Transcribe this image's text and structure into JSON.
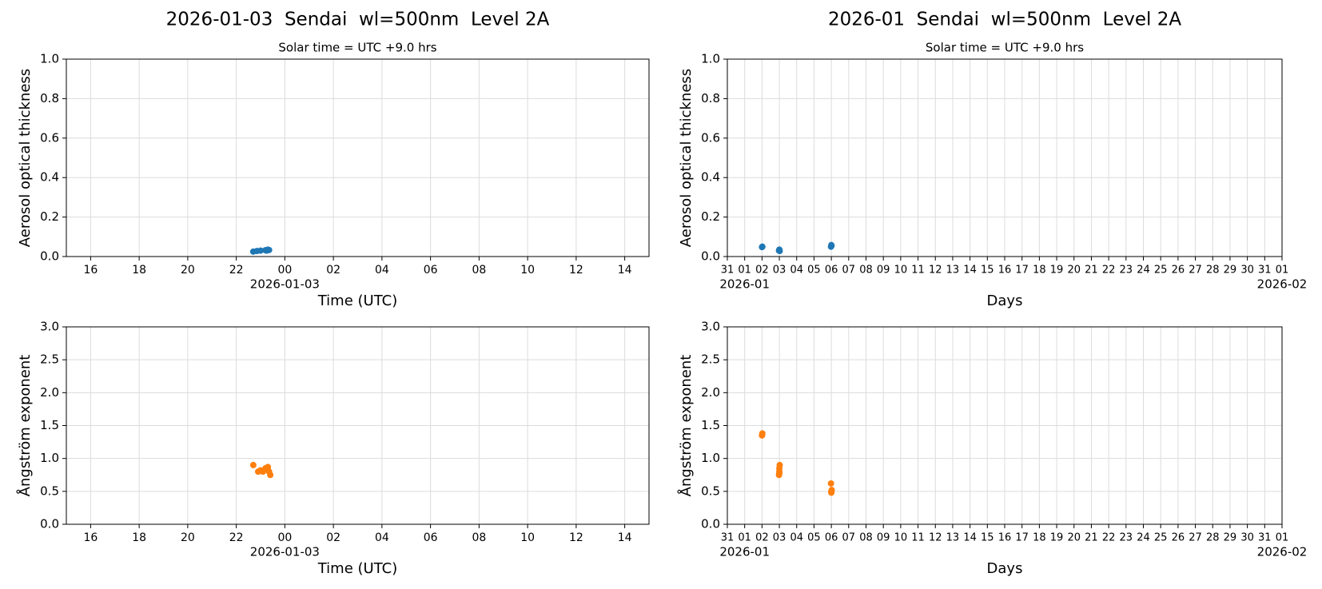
{
  "chart_data": [
    {
      "type": "scatter",
      "title": "2026-01-03  Sendai  wl=500nm  Level 2A",
      "subtitle": "Solar time = UTC +9.0 hrs",
      "x_label": "Time (UTC)",
      "y_label": "Aerosol optical thickness",
      "color": "#1f77b4",
      "grid": true,
      "x": [
        22.7,
        22.85,
        23.0,
        23.2,
        23.3,
        23.25,
        23.35
      ],
      "values": [
        0.025,
        0.028,
        0.03,
        0.032,
        0.035,
        0.03,
        0.033
      ],
      "xlim": [
        15,
        39
      ],
      "ylim": [
        0,
        1
      ],
      "xticks": [
        {
          "value": 16,
          "label": "16"
        },
        {
          "value": 18,
          "label": "18"
        },
        {
          "value": 20,
          "label": "20"
        },
        {
          "value": 22,
          "label": "22"
        },
        {
          "value": 24,
          "label": "00"
        },
        {
          "value": 26,
          "label": "02"
        },
        {
          "value": 28,
          "label": "04"
        },
        {
          "value": 30,
          "label": "06"
        },
        {
          "value": 32,
          "label": "08"
        },
        {
          "value": 34,
          "label": "10"
        },
        {
          "value": 36,
          "label": "12"
        },
        {
          "value": 38,
          "label": "14"
        }
      ],
      "xtick_sublabels": [
        {
          "value": 24,
          "label": "2026-01-03"
        }
      ],
      "yticks": [
        {
          "value": 0,
          "label": "0.0"
        },
        0.2,
        0.4,
        0.6,
        0.8,
        {
          "value": 1,
          "label": "1.0"
        }
      ]
    },
    {
      "type": "scatter",
      "title": "2026-01  Sendai  wl=500nm  Level 2A",
      "subtitle": "Solar time = UTC +9.0 hrs",
      "x_label": "Days",
      "y_label": "Aerosol optical thickness",
      "color": "#1f77b4",
      "grid": true,
      "x": [
        2.0,
        2.02,
        2.98,
        3.0,
        3.02,
        5.98,
        6.0,
        6.01
      ],
      "values": [
        0.048,
        0.05,
        0.03,
        0.035,
        0.028,
        0.05,
        0.058,
        0.055
      ],
      "xlim": [
        0,
        32
      ],
      "ylim": [
        0,
        1
      ],
      "xticks": [
        {
          "value": 0,
          "label": "31"
        },
        {
          "value": 1,
          "label": "01"
        },
        {
          "value": 2,
          "label": "02"
        },
        {
          "value": 3,
          "label": "03"
        },
        {
          "value": 4,
          "label": "04"
        },
        {
          "value": 5,
          "label": "05"
        },
        {
          "value": 6,
          "label": "06"
        },
        {
          "value": 7,
          "label": "07"
        },
        {
          "value": 8,
          "label": "08"
        },
        {
          "value": 9,
          "label": "09"
        },
        10,
        11,
        12,
        13,
        14,
        15,
        16,
        17,
        18,
        19,
        20,
        21,
        22,
        23,
        24,
        25,
        26,
        27,
        28,
        29,
        30,
        31,
        {
          "value": 32,
          "label": "01"
        }
      ],
      "xtick_sublabels": [
        {
          "value": 1,
          "label": "2026-01"
        },
        {
          "value": 32,
          "label": "2026-02"
        }
      ],
      "yticks": [
        {
          "value": 0,
          "label": "0.0"
        },
        0.2,
        0.4,
        0.6,
        0.8,
        {
          "value": 1,
          "label": "1.0"
        }
      ]
    },
    {
      "type": "scatter",
      "x_label": "Time (UTC)",
      "y_label": "Ångström exponent",
      "color": "#ff7f0e",
      "grid": true,
      "x": [
        22.7,
        22.9,
        23.0,
        23.1,
        23.2,
        23.3,
        23.35,
        23.4,
        23.3
      ],
      "values": [
        0.9,
        0.8,
        0.82,
        0.8,
        0.85,
        0.87,
        0.8,
        0.75,
        0.83
      ],
      "xlim": [
        15,
        39
      ],
      "ylim": [
        0,
        3
      ],
      "xticks": [
        {
          "value": 16,
          "label": "16"
        },
        {
          "value": 18,
          "label": "18"
        },
        {
          "value": 20,
          "label": "20"
        },
        {
          "value": 22,
          "label": "22"
        },
        {
          "value": 24,
          "label": "00"
        },
        {
          "value": 26,
          "label": "02"
        },
        {
          "value": 28,
          "label": "04"
        },
        {
          "value": 30,
          "label": "06"
        },
        {
          "value": 32,
          "label": "08"
        },
        {
          "value": 34,
          "label": "10"
        },
        {
          "value": 36,
          "label": "12"
        },
        {
          "value": 38,
          "label": "14"
        }
      ],
      "xtick_sublabels": [
        {
          "value": 24,
          "label": "2026-01-03"
        }
      ],
      "yticks": [
        {
          "value": 0,
          "label": "0.0"
        },
        0.5,
        {
          "value": 1,
          "label": "1.0"
        },
        1.5,
        {
          "value": 2,
          "label": "2.0"
        },
        2.5,
        {
          "value": 3,
          "label": "3.0"
        }
      ]
    },
    {
      "type": "scatter",
      "x_label": "Days",
      "y_label": "Ångström exponent",
      "color": "#ff7f0e",
      "grid": true,
      "x": [
        2.0,
        2.02,
        2.98,
        3.0,
        3.0,
        3.02,
        3.0,
        5.98,
        6.0,
        6.0,
        6.02
      ],
      "values": [
        1.35,
        1.38,
        0.75,
        0.8,
        0.85,
        0.9,
        0.78,
        0.62,
        0.5,
        0.48,
        0.52
      ],
      "xlim": [
        0,
        32
      ],
      "ylim": [
        0,
        3
      ],
      "xticks": [
        {
          "value": 0,
          "label": "31"
        },
        {
          "value": 1,
          "label": "01"
        },
        {
          "value": 2,
          "label": "02"
        },
        {
          "value": 3,
          "label": "03"
        },
        {
          "value": 4,
          "label": "04"
        },
        {
          "value": 5,
          "label": "05"
        },
        {
          "value": 6,
          "label": "06"
        },
        {
          "value": 7,
          "label": "07"
        },
        {
          "value": 8,
          "label": "08"
        },
        {
          "value": 9,
          "label": "09"
        },
        10,
        11,
        12,
        13,
        14,
        15,
        16,
        17,
        18,
        19,
        20,
        21,
        22,
        23,
        24,
        25,
        26,
        27,
        28,
        29,
        30,
        31,
        {
          "value": 32,
          "label": "01"
        }
      ],
      "xtick_sublabels": [
        {
          "value": 1,
          "label": "2026-01"
        },
        {
          "value": 32,
          "label": "2026-02"
        }
      ],
      "yticks": [
        {
          "value": 0,
          "label": "0.0"
        },
        0.5,
        {
          "value": 1,
          "label": "1.0"
        },
        1.5,
        {
          "value": 2,
          "label": "2.0"
        },
        2.5,
        {
          "value": 3,
          "label": "3.0"
        }
      ]
    }
  ]
}
